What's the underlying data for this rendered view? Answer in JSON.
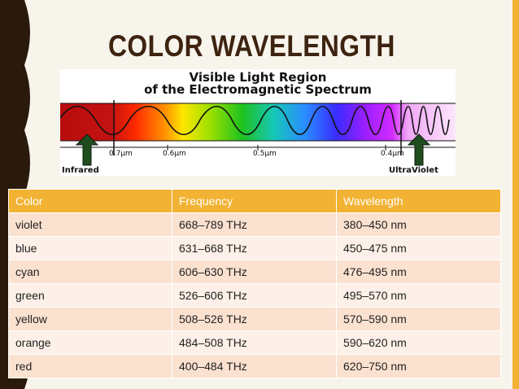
{
  "slide": {
    "title": "COLOR WAVELENGTH",
    "colors": {
      "accent": "#f2b233",
      "dark_band": "#2a1a0c",
      "title": "#3d2310",
      "row_odd": "#fbe1cf",
      "row_even": "#fdf0e8"
    }
  },
  "figure": {
    "title_line1": "Visible Light Region",
    "title_line2": "of the Electromagnetic Spectrum",
    "ticks": [
      "0.7µm",
      "0.6µm",
      "0.5µm",
      "0.4µm"
    ],
    "left_label": "Infrared",
    "right_label": "UltraViolet",
    "arrow_icon": "up-arrow-icon"
  },
  "table": {
    "headers": [
      "Color",
      "Frequency",
      "Wavelength"
    ],
    "rows": [
      [
        "violet",
        "668–789 THz",
        "380–450 nm"
      ],
      [
        "blue",
        "631–668 THz",
        "450–475 nm"
      ],
      [
        "cyan",
        "606–630 THz",
        "476–495 nm"
      ],
      [
        "green",
        "526–606 THz",
        "495–570 nm"
      ],
      [
        "yellow",
        "508–526 THz",
        "570–590 nm"
      ],
      [
        "orange",
        "484–508 THz",
        "590–620 nm"
      ],
      [
        "red",
        "400–484 THz",
        "620–750 nm"
      ]
    ]
  }
}
